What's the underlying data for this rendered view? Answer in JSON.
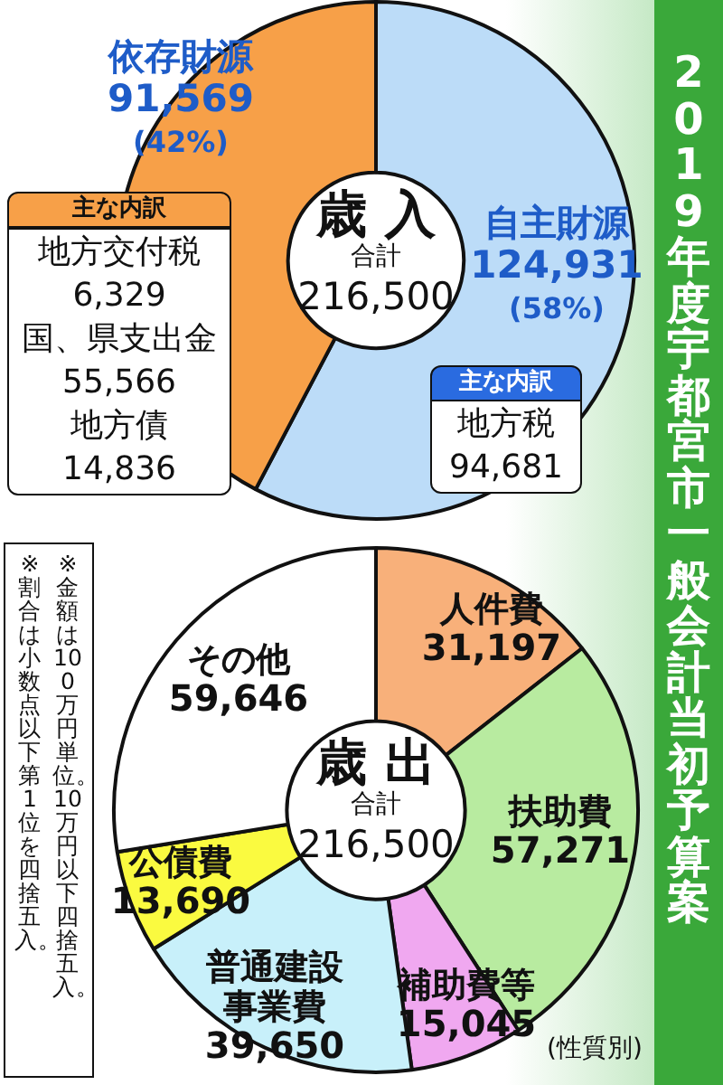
{
  "chart_data": [
    {
      "type": "donut",
      "title": "2019年度宇都宮市一般会計当初予算案",
      "categories": [
        "自主財源",
        "依存財源"
      ],
      "values": [
        124931,
        91569
      ],
      "colors": [
        "#bcdcf8",
        "#f7a048"
      ],
      "value_labels": [
        "124,931\n(58%)",
        "91,569\n(42%)"
      ],
      "annotations": [
        "歳 入",
        "合計",
        "216,500",
        "主な内訳",
        "地方交付税\n6,329\n国、県支出金\n55,566\n地方債\n14,836",
        "主な内訳",
        "地方税\n94,681"
      ]
    },
    {
      "type": "donut",
      "categories": [
        "人件費",
        "扶助費",
        "補助費等",
        "普通建設事業費",
        "公債費",
        "その他"
      ],
      "values": [
        31197,
        57271,
        15045,
        39650,
        13690,
        59646
      ],
      "colors": [
        "#f8b07a",
        "#b8eba0",
        "#f0a8f0",
        "#c8f0fa",
        "#fafa40",
        "#ffffff"
      ],
      "value_labels": [
        "31,197",
        "57,271",
        "15,045",
        "39,650",
        "13,690",
        "59,646"
      ],
      "annotations": [
        "歳 出",
        "合計",
        "216,500",
        "(性質別)",
        "※金額は100万円単位。10万円以下四捨五入。",
        "※割合は小数点以下第1位を四捨五入。"
      ]
    }
  ]
}
